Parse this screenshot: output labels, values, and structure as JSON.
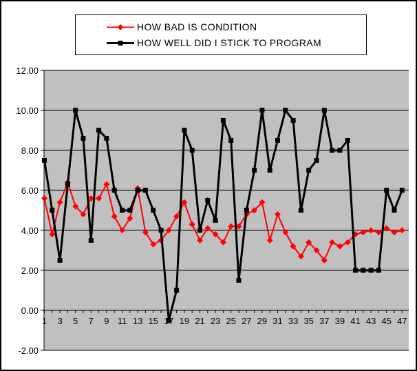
{
  "window": {
    "background": "#ffffff",
    "border_color": "#000000"
  },
  "legend": {
    "position": "top-center",
    "border_color": "#000000",
    "background": "#ffffff"
  },
  "chart_data": {
    "type": "line",
    "title": "",
    "xlabel": "",
    "ylabel": "",
    "ylim": [
      -2,
      12
    ],
    "grid": "horizontal",
    "plot_bg": "#c0c0c0",
    "gridline_color": "#000000",
    "axis_color": "#000000",
    "legend_position": "top-center",
    "x": [
      1,
      2,
      3,
      4,
      5,
      6,
      7,
      8,
      9,
      10,
      11,
      12,
      13,
      14,
      15,
      16,
      17,
      18,
      19,
      20,
      21,
      22,
      23,
      24,
      25,
      26,
      27,
      28,
      29,
      30,
      31,
      32,
      33,
      34,
      35,
      36,
      37,
      38,
      39,
      40,
      41,
      42,
      43,
      44,
      45,
      46,
      47
    ],
    "x_ticks": [
      1,
      3,
      5,
      7,
      9,
      11,
      13,
      15,
      17,
      19,
      21,
      23,
      25,
      27,
      29,
      31,
      33,
      35,
      37,
      39,
      41,
      43,
      45,
      47
    ],
    "x_tick_labels": [
      "1",
      "3",
      "5",
      "7",
      "9",
      "11",
      "13",
      "15",
      "17",
      "19",
      "21",
      "23",
      "25",
      "27",
      "29",
      "31",
      "33",
      "35",
      "37",
      "39",
      "41",
      "43",
      "45",
      "47"
    ],
    "y_ticks": [
      12,
      10,
      8,
      6,
      4,
      2,
      0,
      -2
    ],
    "y_tick_labels": [
      "12.00",
      "10.00",
      "8.00",
      "6.00",
      "4.00",
      "2.00",
      "0.00",
      "-2.00"
    ],
    "series": [
      {
        "name": "HOW BAD IS CONDITION",
        "color": "#ff0000",
        "marker": "diamond",
        "line_width": 2,
        "values": [
          5.6,
          3.8,
          5.4,
          6.4,
          5.2,
          4.8,
          5.6,
          5.6,
          6.3,
          4.7,
          4.0,
          4.6,
          6.1,
          3.9,
          3.3,
          3.5,
          4.0,
          4.7,
          5.4,
          4.3,
          3.5,
          4.1,
          3.8,
          3.4,
          4.2,
          4.2,
          4.8,
          5.0,
          5.4,
          3.5,
          4.8,
          3.9,
          3.2,
          2.7,
          3.4,
          3.0,
          2.5,
          3.4,
          3.2,
          3.4,
          3.8,
          3.9,
          4.0,
          3.9,
          4.1,
          3.9,
          4.0
        ]
      },
      {
        "name": "HOW WELL DID I STICK TO PROGRAM",
        "color": "#000000",
        "marker": "square",
        "line_width": 3,
        "values": [
          7.5,
          5.0,
          2.5,
          6.3,
          10.0,
          8.6,
          3.5,
          9.0,
          8.6,
          6.0,
          5.0,
          5.0,
          6.0,
          6.0,
          5.0,
          4.0,
          -0.5,
          1.0,
          9.0,
          8.0,
          4.0,
          5.5,
          4.5,
          9.5,
          8.5,
          1.5,
          5.0,
          7.0,
          10.0,
          7.0,
          8.5,
          10.0,
          9.5,
          5.0,
          7.0,
          7.5,
          10.0,
          8.0,
          8.0,
          8.5,
          2.0,
          2.0,
          2.0,
          2.0,
          6.0,
          5.0,
          6.0
        ]
      }
    ]
  }
}
